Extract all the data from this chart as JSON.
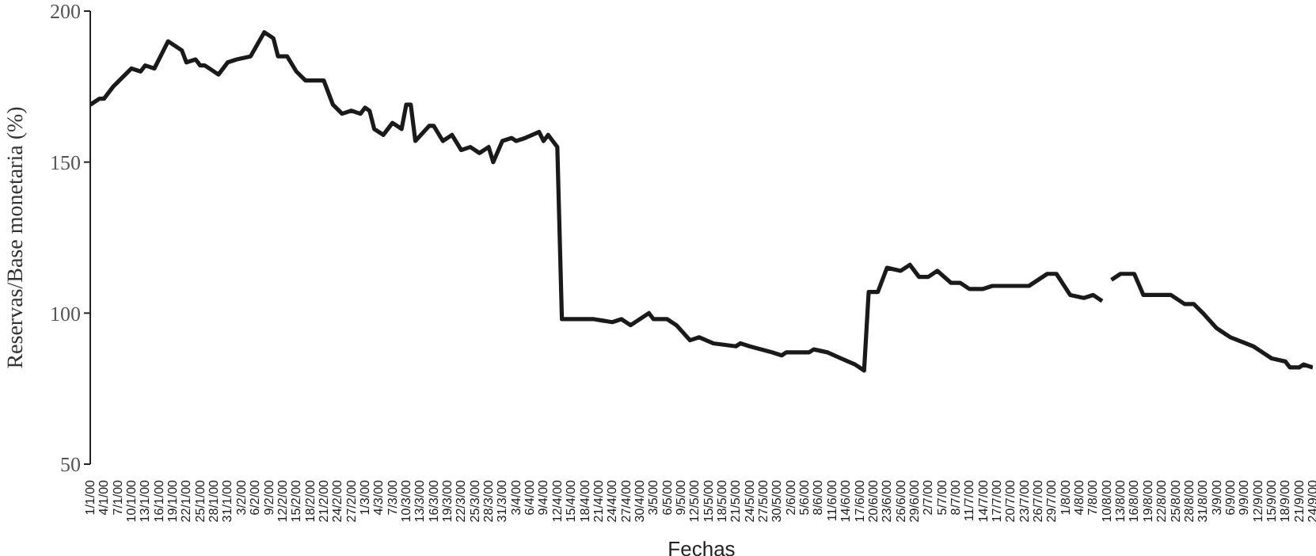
{
  "chart_data": {
    "type": "line",
    "xlabel": "Fechas",
    "ylabel": "Reservas/Base monetaria (%)",
    "x": [
      "2000-01-01",
      "2000-01-03",
      "2000-01-04",
      "2000-01-06",
      "2000-01-10",
      "2000-01-12",
      "2000-01-13",
      "2000-01-15",
      "2000-01-18",
      "2000-01-21",
      "2000-01-22",
      "2000-01-24",
      "2000-01-25",
      "2000-01-26",
      "2000-01-27",
      "2000-01-29",
      "2000-01-31",
      "2000-02-02",
      "2000-02-05",
      "2000-02-08",
      "2000-02-10",
      "2000-02-11",
      "2000-02-13",
      "2000-02-15",
      "2000-02-17",
      "2000-02-21",
      "2000-02-23",
      "2000-02-25",
      "2000-02-27",
      "2000-02-29",
      "2000-03-01",
      "2000-03-02",
      "2000-03-03",
      "2000-03-05",
      "2000-03-07",
      "2000-03-09",
      "2000-03-10",
      "2000-03-11",
      "2000-03-12",
      "2000-03-15",
      "2000-03-16",
      "2000-03-18",
      "2000-03-20",
      "2000-03-22",
      "2000-03-24",
      "2000-03-26",
      "2000-03-28",
      "2000-03-29",
      "2000-03-31",
      "2000-04-02",
      "2000-04-03",
      "2000-04-05",
      "2000-04-08",
      "2000-04-09",
      "2000-04-10",
      "2000-04-11",
      "2000-04-12",
      "2000-04-13",
      "2000-04-20",
      "2000-04-24",
      "2000-04-26",
      "2000-04-28",
      "2000-05-02",
      "2000-05-03",
      "2000-05-06",
      "2000-05-08",
      "2000-05-11",
      "2000-05-13",
      "2000-05-16",
      "2000-05-21",
      "2000-05-22",
      "2000-05-24",
      "2000-05-29",
      "2000-05-31",
      "2000-06-01",
      "2000-06-06",
      "2000-06-07",
      "2000-06-10",
      "2000-06-13",
      "2000-06-16",
      "2000-06-18",
      "2000-06-19",
      "2000-06-21",
      "2000-06-23",
      "2000-06-26",
      "2000-06-28",
      "2000-06-30",
      "2000-07-02",
      "2000-07-04",
      "2000-07-07",
      "2000-07-09",
      "2000-07-11",
      "2000-07-14",
      "2000-07-16",
      "2000-07-21",
      "2000-07-24",
      "2000-07-28",
      "2000-07-30",
      "2000-08-02",
      "2000-08-05",
      "2000-08-07",
      "2000-08-09",
      "2000-08-10",
      "2000-08-11",
      "2000-08-13",
      "2000-08-16",
      "2000-08-18",
      "2000-08-21",
      "2000-08-24",
      "2000-08-27",
      "2000-08-29",
      "2000-08-31",
      "2000-09-03",
      "2000-09-04",
      "2000-09-06",
      "2000-09-11",
      "2000-09-13",
      "2000-09-15",
      "2000-09-18",
      "2000-09-19",
      "2000-09-21",
      "2000-09-22",
      "2000-09-24"
    ],
    "series": [
      {
        "color": "#1a1a1a",
        "values": [
          169,
          171,
          171,
          175,
          181,
          180,
          182,
          181,
          190,
          187,
          183,
          184,
          182,
          182,
          181,
          179,
          183,
          184,
          185,
          193,
          191,
          185,
          185,
          180,
          177,
          177,
          169,
          166,
          167,
          166,
          168,
          167,
          161,
          159,
          163,
          161,
          169,
          169,
          157,
          162,
          162,
          157,
          159,
          154,
          155,
          153,
          155,
          150,
          157,
          158,
          157,
          158,
          160,
          157,
          159,
          157,
          155,
          98,
          98,
          97,
          98,
          96,
          100,
          98,
          98,
          96,
          91,
          92,
          90,
          89,
          90,
          89,
          87,
          86,
          87,
          87,
          88,
          87,
          85,
          83,
          81,
          107,
          107,
          115,
          114,
          116,
          112,
          112,
          114,
          110,
          110,
          108,
          108,
          109,
          109,
          109,
          113,
          113,
          106,
          105,
          106,
          104,
          null,
          111,
          113,
          113,
          106,
          106,
          106,
          103,
          103,
          100,
          95,
          94,
          92,
          89,
          87,
          85,
          84,
          82,
          82,
          83,
          82
        ]
      }
    ],
    "xlim": [
      "2000-01-01",
      "2000-09-24"
    ],
    "xticks": [
      {
        "value": "2000-01-01",
        "label": "1/1/00"
      },
      {
        "value": "2000-01-04",
        "label": "4/1/00"
      },
      {
        "value": "2000-01-07",
        "label": "7/1/00"
      },
      {
        "value": "2000-01-10",
        "label": "10/1/00"
      },
      {
        "value": "2000-01-13",
        "label": "13/1/00"
      },
      {
        "value": "2000-01-16",
        "label": "16/1/00"
      },
      {
        "value": "2000-01-19",
        "label": "19/1/00"
      },
      {
        "value": "2000-01-22",
        "label": "22/1/00"
      },
      {
        "value": "2000-01-25",
        "label": "25/1/00"
      },
      {
        "value": "2000-01-28",
        "label": "28/1/00"
      },
      {
        "value": "2000-01-31",
        "label": "31/1/00"
      },
      {
        "value": "2000-02-03",
        "label": "3/2/00"
      },
      {
        "value": "2000-02-06",
        "label": "6/2/00"
      },
      {
        "value": "2000-02-09",
        "label": "9/2/00"
      },
      {
        "value": "2000-02-12",
        "label": "12/2/00"
      },
      {
        "value": "2000-02-15",
        "label": "15/2/00"
      },
      {
        "value": "2000-02-18",
        "label": "18/2/00"
      },
      {
        "value": "2000-02-21",
        "label": "21/2/00"
      },
      {
        "value": "2000-02-24",
        "label": "24/2/00"
      },
      {
        "value": "2000-02-27",
        "label": "27/2/00"
      },
      {
        "value": "2000-03-01",
        "label": "1/3/00"
      },
      {
        "value": "2000-03-04",
        "label": "4/3/00"
      },
      {
        "value": "2000-03-07",
        "label": "7/3/00"
      },
      {
        "value": "2000-03-10",
        "label": "10/3/00"
      },
      {
        "value": "2000-03-13",
        "label": "13/3/00"
      },
      {
        "value": "2000-03-16",
        "label": "16/3/00"
      },
      {
        "value": "2000-03-19",
        "label": "19/3/00"
      },
      {
        "value": "2000-03-22",
        "label": "22/3/00"
      },
      {
        "value": "2000-03-25",
        "label": "25/3/00"
      },
      {
        "value": "2000-03-28",
        "label": "28/3/00"
      },
      {
        "value": "2000-03-31",
        "label": "31/3/00"
      },
      {
        "value": "2000-04-03",
        "label": "3/4/00"
      },
      {
        "value": "2000-04-06",
        "label": "6/4/00"
      },
      {
        "value": "2000-04-09",
        "label": "9/4/00"
      },
      {
        "value": "2000-04-12",
        "label": "12/4/00"
      },
      {
        "value": "2000-04-15",
        "label": "15/4/00"
      },
      {
        "value": "2000-04-18",
        "label": "18/4/00"
      },
      {
        "value": "2000-04-21",
        "label": "21/4/00"
      },
      {
        "value": "2000-04-24",
        "label": "24/4/00"
      },
      {
        "value": "2000-04-27",
        "label": "27/4/00"
      },
      {
        "value": "2000-04-30",
        "label": "30/4/00"
      },
      {
        "value": "2000-05-03",
        "label": "3/5/00"
      },
      {
        "value": "2000-05-06",
        "label": "6/5/00"
      },
      {
        "value": "2000-05-09",
        "label": "9/5/00"
      },
      {
        "value": "2000-05-12",
        "label": "12/5/00"
      },
      {
        "value": "2000-05-15",
        "label": "15/5/00"
      },
      {
        "value": "2000-05-18",
        "label": "18/5/00"
      },
      {
        "value": "2000-05-21",
        "label": "21/5/00"
      },
      {
        "value": "2000-05-24",
        "label": "24/5/00"
      },
      {
        "value": "2000-05-27",
        "label": "27/5/00"
      },
      {
        "value": "2000-05-30",
        "label": "30/5/00"
      },
      {
        "value": "2000-06-02",
        "label": "2/6/00"
      },
      {
        "value": "2000-06-05",
        "label": "5/6/00"
      },
      {
        "value": "2000-06-08",
        "label": "8/6/00"
      },
      {
        "value": "2000-06-11",
        "label": "11/6/00"
      },
      {
        "value": "2000-06-14",
        "label": "14/6/00"
      },
      {
        "value": "2000-06-17",
        "label": "17/6/00"
      },
      {
        "value": "2000-06-20",
        "label": "20/6/00"
      },
      {
        "value": "2000-06-23",
        "label": "23/6/00"
      },
      {
        "value": "2000-06-26",
        "label": "26/6/00"
      },
      {
        "value": "2000-06-29",
        "label": "29/6/00"
      },
      {
        "value": "2000-07-02",
        "label": "2/7/00"
      },
      {
        "value": "2000-07-05",
        "label": "5/7/00"
      },
      {
        "value": "2000-07-08",
        "label": "8/7/00"
      },
      {
        "value": "2000-07-11",
        "label": "11/7/00"
      },
      {
        "value": "2000-07-14",
        "label": "14/7/00"
      },
      {
        "value": "2000-07-17",
        "label": "17/7/00"
      },
      {
        "value": "2000-07-20",
        "label": "20/7/00"
      },
      {
        "value": "2000-07-23",
        "label": "23/7/00"
      },
      {
        "value": "2000-07-26",
        "label": "26/7/00"
      },
      {
        "value": "2000-07-29",
        "label": "29/7/00"
      },
      {
        "value": "2000-08-01",
        "label": "1/8/00"
      },
      {
        "value": "2000-08-04",
        "label": "4/8/00"
      },
      {
        "value": "2000-08-07",
        "label": "7/8/00"
      },
      {
        "value": "2000-08-10",
        "label": "10/8/00"
      },
      {
        "value": "2000-08-13",
        "label": "13/8/00"
      },
      {
        "value": "2000-08-16",
        "label": "16/8/00"
      },
      {
        "value": "2000-08-19",
        "label": "19/8/00"
      },
      {
        "value": "2000-08-22",
        "label": "22/8/00"
      },
      {
        "value": "2000-08-25",
        "label": "25/8/00"
      },
      {
        "value": "2000-08-28",
        "label": "28/8/00"
      },
      {
        "value": "2000-08-31",
        "label": "31/8/00"
      },
      {
        "value": "2000-09-03",
        "label": "3/9/00"
      },
      {
        "value": "2000-09-06",
        "label": "6/9/00"
      },
      {
        "value": "2000-09-09",
        "label": "9/9/00"
      },
      {
        "value": "2000-09-12",
        "label": "12/9/00"
      },
      {
        "value": "2000-09-15",
        "label": "15/9/00"
      },
      {
        "value": "2000-09-18",
        "label": "18/9/00"
      },
      {
        "value": "2000-09-21",
        "label": "21/9/00"
      },
      {
        "value": "2000-09-24",
        "label": "24/9/00"
      }
    ],
    "ylim": [
      50,
      200
    ],
    "yticks": [
      50,
      100,
      150,
      200
    ],
    "grid": false,
    "legend": false,
    "marker": "none",
    "line_style": "solid"
  }
}
